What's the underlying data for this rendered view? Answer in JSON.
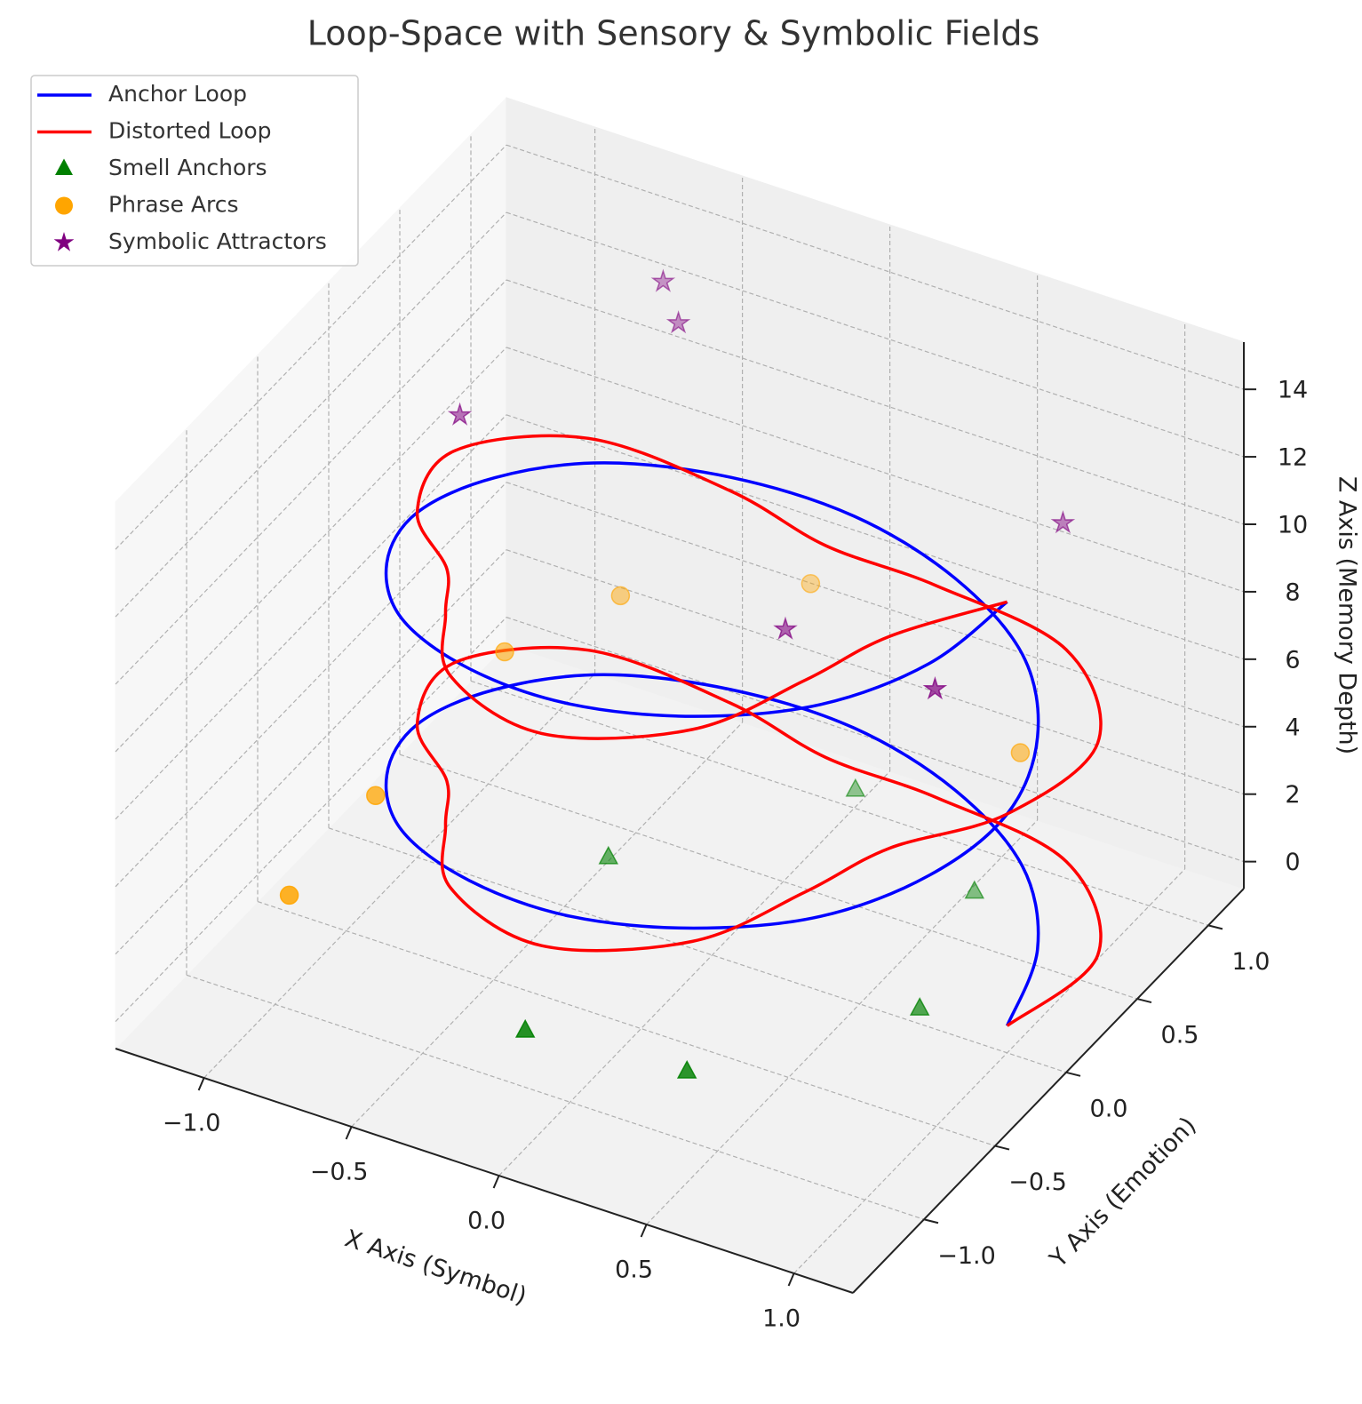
{
  "chart_data": {
    "type": "3d",
    "title": "Loop-Space with Sensory & Symbolic Fields",
    "x_label": "X Axis (Symbol)",
    "y_label": "Y Axis (Emotion)",
    "z_label": "Z Axis (Memory Depth)",
    "xlim": [
      -1.3,
      1.2
    ],
    "ylim": [
      -1.5,
      1.25
    ],
    "zlim": [
      -0.8,
      15.4
    ],
    "xticks": [
      {
        "value": -1,
        "label": "−1.0"
      },
      {
        "value": -0.5,
        "label": "−0.5"
      },
      {
        "value": 0,
        "label": "0.0"
      },
      0.5,
      {
        "value": 1,
        "label": "1.0"
      }
    ],
    "yticks": [
      {
        "value": -1,
        "label": "−1.0"
      },
      {
        "value": -0.5,
        "label": "−0.5"
      },
      {
        "value": 0,
        "label": "0.0"
      },
      0.5,
      {
        "value": 1,
        "label": "1.0"
      }
    ],
    "zticks": [
      0,
      2,
      4,
      6,
      8,
      10,
      12,
      14
    ],
    "grid": true,
    "legend": "upper left",
    "series": [
      {
        "name": "Anchor Loop",
        "type": "line",
        "color": "#0000ff",
        "x": [
          1,
          0.92,
          0.71,
          0.38,
          0,
          -0.38,
          -0.71,
          -0.92,
          -1,
          -0.92,
          -0.71,
          -0.38,
          0,
          0.38,
          0.71,
          0.92,
          1,
          0.92,
          0.71,
          0.38,
          0,
          -0.38,
          -0.71,
          -0.92,
          -1,
          -0.92,
          -0.71,
          -0.38,
          0,
          0.38,
          0.71,
          0.92,
          1
        ],
        "y": [
          0,
          0.38,
          0.71,
          0.92,
          1,
          0.92,
          0.71,
          0.38,
          0,
          -0.38,
          -0.71,
          -0.92,
          -1,
          -0.92,
          -0.71,
          -0.38,
          0,
          0.38,
          0.71,
          0.92,
          1,
          0.92,
          0.71,
          0.38,
          0,
          -0.38,
          -0.71,
          -0.92,
          -1,
          -0.92,
          -0.71,
          -0.38,
          0
        ],
        "z": [
          0,
          0.39,
          0.79,
          1.18,
          1.57,
          1.96,
          2.36,
          2.75,
          3.14,
          3.53,
          3.93,
          4.32,
          4.71,
          5.11,
          5.5,
          5.89,
          6.28,
          6.68,
          7.07,
          7.46,
          7.85,
          8.25,
          8.64,
          9.03,
          9.42,
          9.82,
          10.21,
          10.6,
          11.0,
          11.39,
          11.78,
          12.17,
          12.57
        ]
      },
      {
        "name": "Distorted Loop",
        "type": "line",
        "color": "#ff0000",
        "x": [
          1,
          1.09,
          0.81,
          0.35,
          0,
          -0.35,
          -0.81,
          -1.09,
          -1,
          -0.75,
          -0.61,
          -0.41,
          0,
          0.41,
          0.61,
          0.75,
          1,
          1.09,
          0.81,
          0.35,
          0,
          -0.35,
          -0.81,
          -1.09,
          -1,
          -0.75,
          -0.61,
          -0.41,
          0,
          0.41,
          0.61,
          0.75,
          1
        ],
        "y": [
          0,
          0.45,
          0.81,
          0.85,
          0.8,
          0.85,
          0.81,
          0.45,
          0,
          -0.31,
          -0.61,
          -0.99,
          -1.2,
          -0.99,
          -0.61,
          -0.31,
          0,
          0.45,
          0.81,
          0.85,
          0.8,
          0.85,
          0.81,
          0.45,
          0,
          -0.31,
          -0.61,
          -0.99,
          -1.2,
          -0.99,
          -0.61,
          -0.31,
          0
        ],
        "z": [
          0,
          0.39,
          0.79,
          1.18,
          1.57,
          1.96,
          2.36,
          2.75,
          3.14,
          3.53,
          3.93,
          4.32,
          4.71,
          5.11,
          5.5,
          5.89,
          6.28,
          6.68,
          7.07,
          7.46,
          7.85,
          8.25,
          8.64,
          9.03,
          9.42,
          9.82,
          10.21,
          10.6,
          11.0,
          11.39,
          11.78,
          12.17,
          12.57
        ]
      },
      {
        "name": "Smell Anchors",
        "type": "scatter",
        "marker": "triangle",
        "color": "#008000",
        "x": [
          -0.2,
          0.3,
          0.8,
          -0.4,
          0.6,
          0.1
        ],
        "y": [
          -0.9,
          -0.8,
          -0.2,
          0.1,
          0.6,
          0.8
        ],
        "z": [
          0.3,
          0.1,
          0.8,
          0.5,
          0.2,
          0.9
        ]
      },
      {
        "name": "Phrase Arcs",
        "type": "scatter",
        "marker": "circle",
        "color": "#ffa500",
        "x": [
          -0.9,
          -0.8,
          -1.0,
          -0.6,
          -0.1,
          0.9
        ],
        "y": [
          -0.5,
          0.2,
          -0.9,
          0.6,
          0.9,
          0.3
        ],
        "z": [
          3.5,
          5,
          2,
          5.5,
          6,
          6.5
        ]
      },
      {
        "name": "Symbolic Attractors",
        "type": "scatter",
        "marker": "star",
        "color": "#800080",
        "x": [
          -1,
          -0.6,
          -0.5,
          0.2,
          0.9,
          0.9
        ],
        "y": [
          0.3,
          0.9,
          0.8,
          0.1,
          -0.3,
          0.6
        ],
        "z": [
          11,
          13.5,
          13,
          9,
          11,
          12
        ]
      }
    ]
  }
}
